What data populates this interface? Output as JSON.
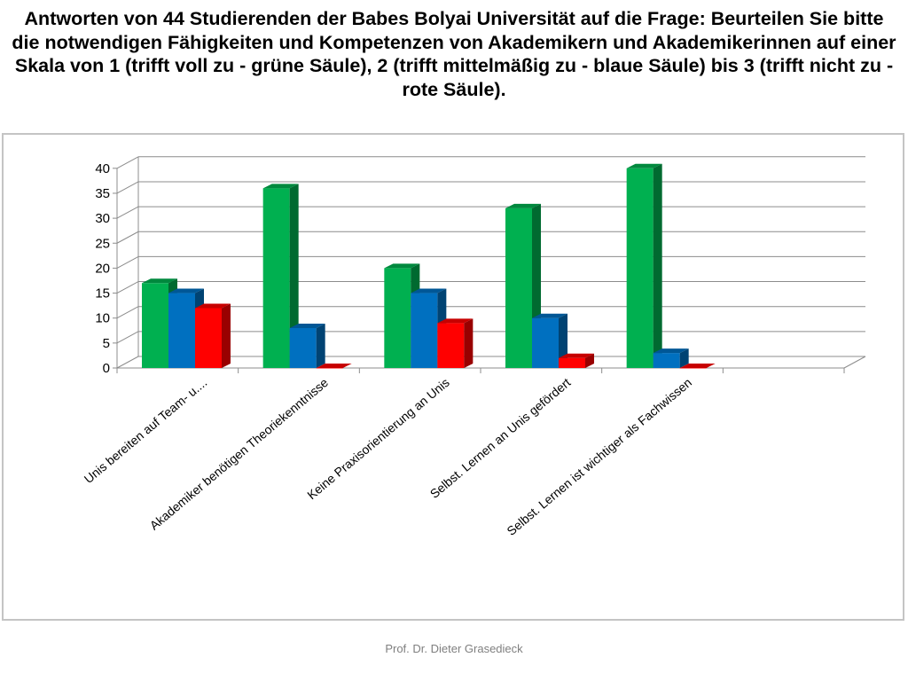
{
  "slide": {
    "title": "Antworten von 44 Studierenden der Babes Bolyai Universität auf die Frage: Beurteilen Sie bitte die notwendigen Fähigkeiten und Kompetenzen von Akademikern und Akademikerinnen auf einer Skala von 1 (trifft voll zu - grüne Säule), 2 (trifft mittelmäßig zu - blaue Säule) bis 3 (trifft nicht zu - rote Säule).",
    "footer": "Prof. Dr. Dieter Grasedieck"
  },
  "chart_data": {
    "type": "bar",
    "style": "3d-clustered-column",
    "categories": [
      "Unis bereiten auf Team- u....",
      "Akademiker  benötigen Theoriekenntnisse",
      "Keine Praxisorientierung an Unis",
      "Selbst. Lernen an Unis gefördert",
      "Selbst. Lernen ist wichtiger als Fachwissen",
      ""
    ],
    "series": [
      {
        "color": "#00b050",
        "values": [
          17,
          36,
          20,
          32,
          40,
          null
        ]
      },
      {
        "color": "#0070c0",
        "values": [
          15,
          8,
          15,
          10,
          3,
          null
        ]
      },
      {
        "color": "#ff0000",
        "values": [
          12,
          0,
          9,
          2,
          0,
          null
        ]
      }
    ],
    "ylim": [
      0,
      40
    ],
    "yticks": [
      0,
      5,
      10,
      15,
      20,
      25,
      30,
      35,
      40
    ],
    "grid": true,
    "legend": "none",
    "title": "",
    "xlabel": "",
    "ylabel": ""
  }
}
